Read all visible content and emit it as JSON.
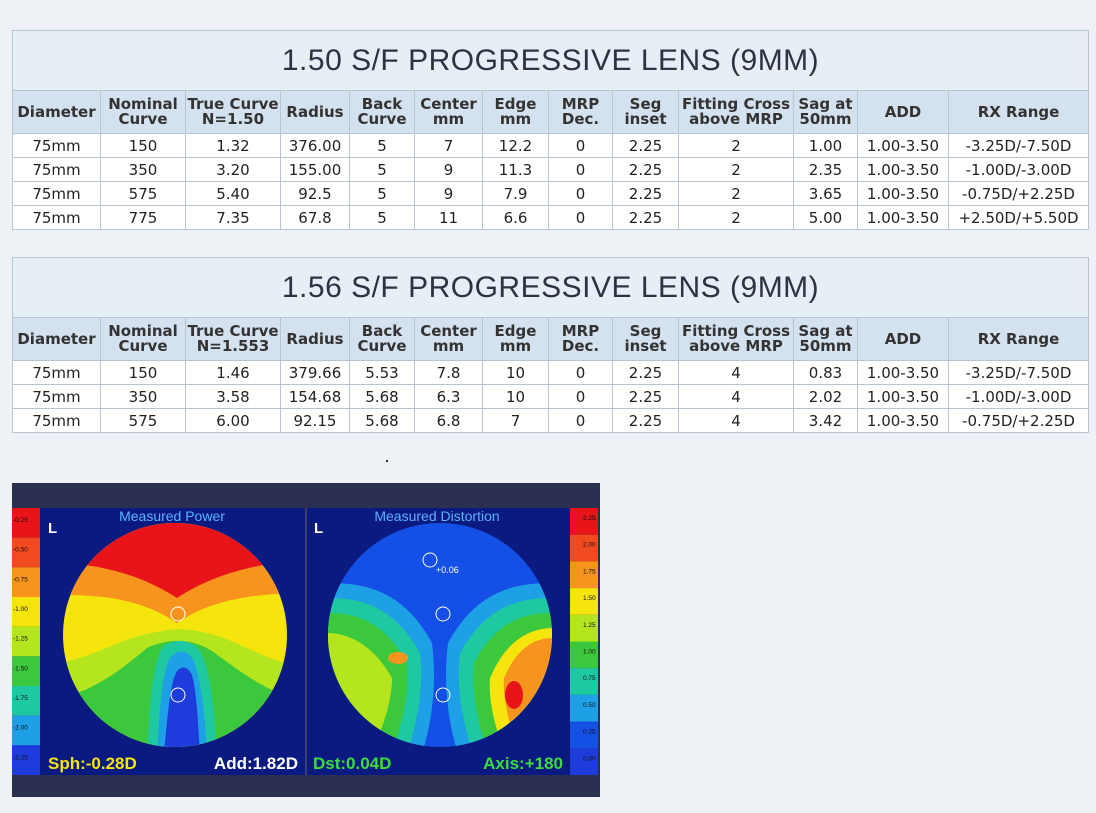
{
  "tables": [
    {
      "title": "1.50 S/F PROGRESSIVE LENS (9MM)",
      "headers": [
        [
          "Diameter"
        ],
        [
          "Nominal",
          "Curve"
        ],
        [
          "True Curve",
          "N=1.50"
        ],
        [
          "Radius"
        ],
        [
          "Back",
          "Curve"
        ],
        [
          "Center",
          "mm"
        ],
        [
          "Edge",
          "mm"
        ],
        [
          "MRP",
          "Dec."
        ],
        [
          "Seg",
          "inset"
        ],
        [
          "Fitting Cross",
          "above MRP"
        ],
        [
          "Sag at",
          "50mm"
        ],
        [
          "ADD"
        ],
        [
          "RX Range"
        ]
      ],
      "rows": [
        [
          "75mm",
          "150",
          "1.32",
          "376.00",
          "5",
          "7",
          "12.2",
          "0",
          "2.25",
          "2",
          "1.00",
          "1.00-3.50",
          "-3.25D/-7.50D"
        ],
        [
          "75mm",
          "350",
          "3.20",
          "155.00",
          "5",
          "9",
          "11.3",
          "0",
          "2.25",
          "2",
          "2.35",
          "1.00-3.50",
          "-1.00D/-3.00D"
        ],
        [
          "75mm",
          "575",
          "5.40",
          "92.5",
          "5",
          "9",
          "7.9",
          "0",
          "2.25",
          "2",
          "3.65",
          "1.00-3.50",
          "-0.75D/+2.25D"
        ],
        [
          "75mm",
          "775",
          "7.35",
          "67.8",
          "5",
          "11",
          "6.6",
          "0",
          "2.25",
          "2",
          "5.00",
          "1.00-3.50",
          "+2.50D/+5.50D"
        ]
      ]
    },
    {
      "title": "1.56 S/F PROGRESSIVE LENS (9MM)",
      "headers": [
        [
          "Diameter"
        ],
        [
          "Nominal",
          "Curve"
        ],
        [
          "True Curve",
          "N=1.553"
        ],
        [
          "Radius"
        ],
        [
          "Back",
          "Curve"
        ],
        [
          "Center",
          "mm"
        ],
        [
          "Edge",
          "mm"
        ],
        [
          "MRP",
          "Dec."
        ],
        [
          "Seg",
          "inset"
        ],
        [
          "Fitting Cross",
          "above MRP"
        ],
        [
          "Sag at",
          "50mm"
        ],
        [
          "ADD"
        ],
        [
          "RX Range"
        ]
      ],
      "rows": [
        [
          "75mm",
          "150",
          "1.46",
          "379.66",
          "5.53",
          "7.8",
          "10",
          "0",
          "2.25",
          "4",
          "0.83",
          "1.00-3.50",
          "-3.25D/-7.50D"
        ],
        [
          "75mm",
          "350",
          "3.58",
          "154.68",
          "5.68",
          "6.3",
          "10",
          "0",
          "2.25",
          "4",
          "2.02",
          "1.00-3.50",
          "-1.00D/-3.00D"
        ],
        [
          "75mm",
          "575",
          "6.00",
          "92.15",
          "5.68",
          "6.8",
          "7",
          "0",
          "2.25",
          "4",
          "3.42",
          "1.00-3.50",
          "-0.75D/+2.25D"
        ]
      ]
    }
  ],
  "image": {
    "power_title": "Measured Power",
    "distortion_title": "Measured Distortion",
    "eye_left": "L",
    "eye_right": "L",
    "power_scale": [
      "-0.25",
      "-0.50",
      "-0.75",
      "-1.00",
      "-1.25",
      "-1.50",
      "-1.75",
      "-2.00",
      "-2.25"
    ],
    "distortion_scale": [
      "2.25",
      "2.00",
      "1.75",
      "1.50",
      "1.25",
      "1.00",
      "0.75",
      "0.50",
      "0.25",
      "0.00"
    ],
    "annotation": "+0.06",
    "sph": "Sph:-0.28D",
    "add": "Add:1.82D",
    "dst": "Dst:0.04D",
    "axis": "Axis:+180"
  }
}
